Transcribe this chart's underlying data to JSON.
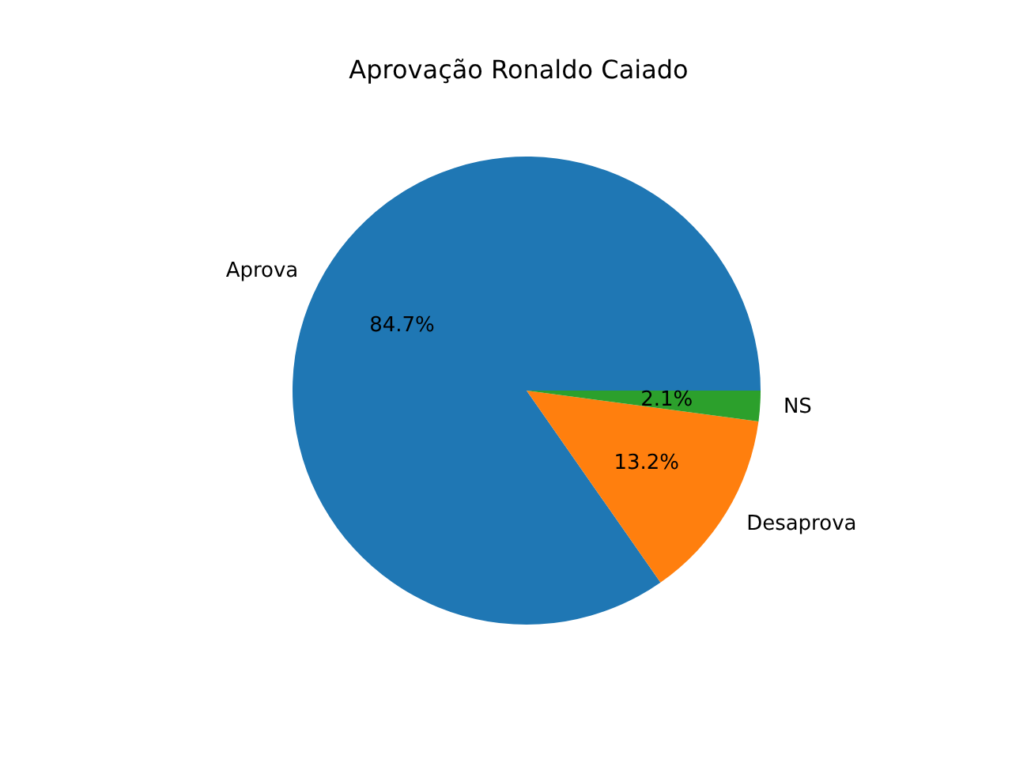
{
  "chart_data": {
    "type": "pie",
    "title": "Aprovação Ronaldo Caiado",
    "categories": [
      "Aprova",
      "Desaprova",
      "NS"
    ],
    "values": [
      84.7,
      13.2,
      2.1
    ],
    "colors": [
      "#1f77b4",
      "#ff7f0e",
      "#2ca02c"
    ],
    "value_labels": [
      "84.7%",
      "13.2%",
      "2.1%"
    ]
  }
}
